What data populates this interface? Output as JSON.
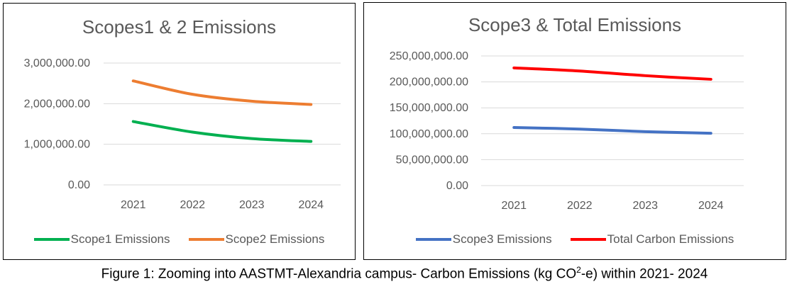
{
  "caption": {
    "prefix": "Figure 1: Zooming into AASTMT-Alexandria campus- Carbon Emissions (kg CO",
    "superscript": "2",
    "suffix": "-e) within 2021- 2024"
  },
  "chart_data": [
    {
      "type": "line",
      "title": "Scopes1 & 2 Emissions",
      "categories": [
        "2021",
        "2022",
        "2023",
        "2024"
      ],
      "ylim": [
        0,
        3000000
      ],
      "yticks": [
        "0.00",
        "1,000,000.00",
        "2,000,000.00",
        "3,000,000.00"
      ],
      "ytick_values": [
        0,
        1000000,
        2000000,
        3000000
      ],
      "grid": true,
      "legend_position": "bottom",
      "series": [
        {
          "name": "Scope1 Emissions",
          "color": "#00b050",
          "values": [
            1560000,
            1300000,
            1140000,
            1070000
          ]
        },
        {
          "name": "Scope2 Emissions",
          "color": "#ed7d31",
          "values": [
            2560000,
            2230000,
            2060000,
            1980000
          ]
        }
      ]
    },
    {
      "type": "line",
      "title": "Scope3 & Total Emissions",
      "categories": [
        "2021",
        "2022",
        "2023",
        "2024"
      ],
      "ylim": [
        0,
        250000000
      ],
      "yticks": [
        "0.00",
        "50,000,000.00",
        "100,000,000.00",
        "150,000,000.00",
        "200,000,000.00",
        "250,000,000.00"
      ],
      "ytick_values": [
        0,
        50000000,
        100000000,
        150000000,
        200000000,
        250000000
      ],
      "grid": true,
      "legend_position": "bottom",
      "series": [
        {
          "name": "Scope3 Emissions",
          "color": "#4472c4",
          "values": [
            112000000,
            109000000,
            104000000,
            101000000
          ]
        },
        {
          "name": "Total Carbon Emissions",
          "color": "#ff0000",
          "values": [
            227000000,
            221000000,
            212000000,
            205000000
          ]
        }
      ]
    }
  ]
}
